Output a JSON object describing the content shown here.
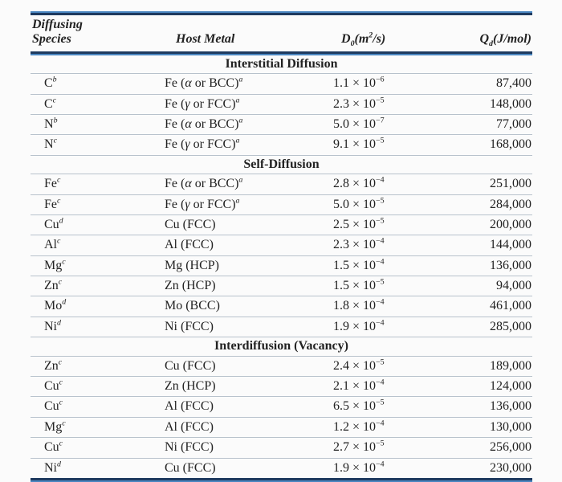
{
  "table": {
    "columns": [
      {
        "label": "Diffusing\nSpecies"
      },
      {
        "label": "Host Metal"
      },
      {
        "label": "D_0(m^2/s)"
      },
      {
        "label": "Q_d(J/mol)"
      }
    ],
    "sections": [
      {
        "title": "Interstitial Diffusion",
        "rows": [
          [
            "C^b",
            "Fe (α or BCC)^a",
            "1.1 × 10^−6",
            "87,400"
          ],
          [
            "C^c",
            "Fe (γ or FCC)^a",
            "2.3 × 10^−5",
            "148,000"
          ],
          [
            "N^b",
            "Fe (α or BCC)^a",
            "5.0 × 10^−7",
            "77,000"
          ],
          [
            "N^c",
            "Fe (γ or FCC)^a",
            "9.1 × 10^−5",
            "168,000"
          ]
        ]
      },
      {
        "title": "Self-Diffusion",
        "rows": [
          [
            "Fe^c",
            "Fe (α or BCC)^a",
            "2.8 × 10^−4",
            "251,000"
          ],
          [
            "Fe^c",
            "Fe (γ or FCC)^a",
            "5.0 × 10^−5",
            "284,000"
          ],
          [
            "Cu^d",
            "Cu (FCC)",
            "2.5 × 10^−5",
            "200,000"
          ],
          [
            "Al^c",
            "Al (FCC)",
            "2.3 × 10^−4",
            "144,000"
          ],
          [
            "Mg^c",
            "Mg (HCP)",
            "1.5 × 10^−4",
            "136,000"
          ],
          [
            "Zn^c",
            "Zn (HCP)",
            "1.5 × 10^−5",
            "94,000"
          ],
          [
            "Mo^d",
            "Mo (BCC)",
            "1.8 × 10^−4",
            "461,000"
          ],
          [
            "Ni^d",
            "Ni (FCC)",
            "1.9 × 10^−4",
            "285,000"
          ]
        ]
      },
      {
        "title": "Interdiffusion (Vacancy)",
        "rows": [
          [
            "Zn^c",
            "Cu (FCC)",
            "2.4 × 10^−5",
            "189,000"
          ],
          [
            "Cu^c",
            "Zn (HCP)",
            "2.1 × 10^−4",
            "124,000"
          ],
          [
            "Cu^c",
            "Al (FCC)",
            "6.5 × 10^−5",
            "136,000"
          ],
          [
            "Mg^c",
            "Al (FCC)",
            "1.2 × 10^−4",
            "130,000"
          ],
          [
            "Cu^c",
            "Ni (FCC)",
            "2.7 × 10^−5",
            "256,000"
          ],
          [
            "Ni^d",
            "Cu (FCC)",
            "1.9 × 10^−4",
            "230,000"
          ]
        ]
      }
    ],
    "colors": {
      "rule_dark": "#1e3a5f",
      "rule_blue": "#4a86c0",
      "row_line": "#b8c2cc",
      "text": "#222222"
    }
  }
}
